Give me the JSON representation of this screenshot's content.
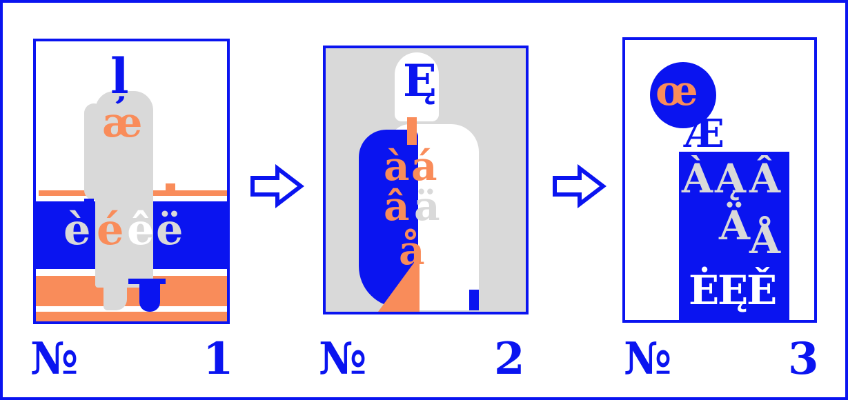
{
  "colors": {
    "blue": "#0a14f0",
    "orange": "#f98c5a",
    "grey": "#d9d9d9",
    "white": "#ffffff"
  },
  "panels": [
    {
      "number_sign": "№",
      "number": "1",
      "glyphs": {
        "head": "ļ",
        "ae": "æ",
        "e_grave": "è",
        "e_acute": "é",
        "e_circ": "ê",
        "e_diaer": "ë"
      }
    },
    {
      "number_sign": "№",
      "number": "2",
      "glyphs": {
        "head": "Ę",
        "a_grave": "à",
        "a_acute": "á",
        "a_circ": "â",
        "a_diaer": "ä",
        "a_ring": "å"
      }
    },
    {
      "number_sign": "№",
      "number": "3",
      "glyphs": {
        "oe": "œ",
        "AE": "Æ",
        "A_grave": "À",
        "A_ogonek": "Ą",
        "A_circ": "Â",
        "A_diaer": "Ä",
        "A_ring": "Å",
        "E_dot": "Ė",
        "E_ogonek": "Ę",
        "E_caron": "Ě"
      }
    }
  ],
  "arrows": [
    {
      "icon": "outline-right-arrow-icon"
    },
    {
      "icon": "outline-right-arrow-icon"
    }
  ]
}
